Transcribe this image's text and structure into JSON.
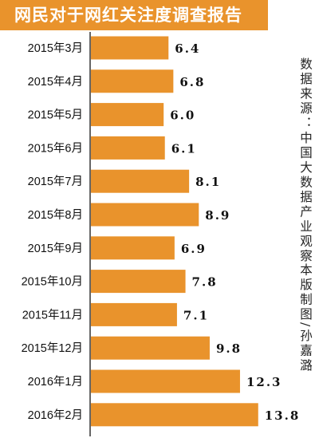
{
  "colors": {
    "accent": "#e9932c",
    "text": "#111111",
    "background": "#ffffff"
  },
  "chart_data": {
    "type": "bar",
    "orientation": "horizontal",
    "title": "网民对于网红关注度调查报告",
    "categories": [
      "2015年3月",
      "2015年4月",
      "2015年5月",
      "2015年6月",
      "2015年7月",
      "2015年8月",
      "2015年9月",
      "2015年10月",
      "2015年11月",
      "2015年12月",
      "2016年1月",
      "2016年2月"
    ],
    "values": [
      6.4,
      6.8,
      6.0,
      6.1,
      8.1,
      8.9,
      6.9,
      7.8,
      7.1,
      9.8,
      12.3,
      13.8
    ],
    "value_labels": [
      "6.4",
      "6.8",
      "6.0",
      "6.1",
      "8.1",
      "8.9",
      "6.9",
      "7.8",
      "7.1",
      "9.8",
      "12.3",
      "13.8"
    ],
    "xlabel": "",
    "ylabel": "",
    "grid": false,
    "legend": "none"
  },
  "notes": {
    "source": "数据来源：中国大数据产业观察",
    "credit": "本版制图/孙嘉潞"
  }
}
